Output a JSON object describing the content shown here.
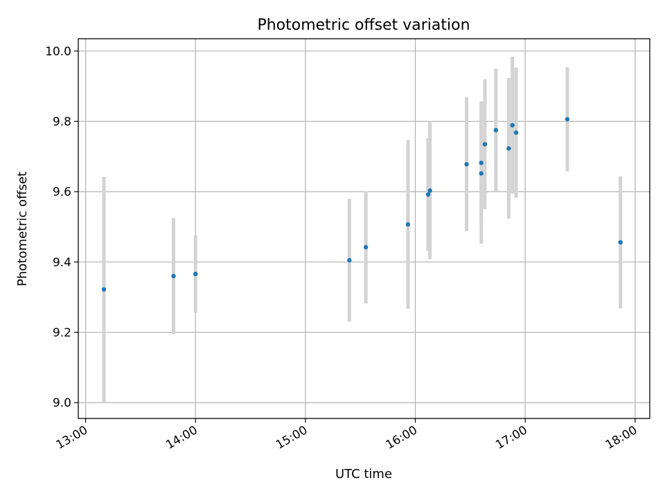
{
  "chart_data": {
    "type": "scatter",
    "title": "Photometric offset variation",
    "xlabel": "UTC time",
    "ylabel": "Photometric offset",
    "xlim": [
      "12:56",
      "18:08"
    ],
    "ylim": [
      8.955,
      10.035
    ],
    "x_ticks": [
      "13:00",
      "14:00",
      "15:00",
      "16:00",
      "17:00",
      "18:00"
    ],
    "y_ticks": [
      "9.0",
      "9.2",
      "9.4",
      "9.6",
      "9.8",
      "10.0"
    ],
    "grid": true,
    "x_tick_rotation": "diagonal",
    "colors": {
      "points": "#1f77b4",
      "errorbars": "#d3d3d3",
      "grid": "#b0b0b0"
    },
    "series": [
      {
        "x": [
          "13:10",
          "13:48",
          "14:00",
          "15:24",
          "15:33",
          "15:56",
          "16:07",
          "16:08",
          "16:28",
          "16:36",
          "16:36",
          "16:38",
          "16:44",
          "16:51",
          "16:53",
          "16:55",
          "17:23",
          "17:52"
        ],
        "y": [
          9.322,
          9.36,
          9.366,
          9.405,
          9.442,
          9.507,
          9.592,
          9.603,
          9.678,
          9.682,
          9.652,
          9.735,
          9.775,
          9.723,
          9.789,
          9.768,
          9.806,
          9.456
        ],
        "err": [
          0.32,
          0.165,
          0.11,
          0.175,
          0.16,
          0.24,
          0.16,
          0.195,
          0.19,
          0.175,
          0.2,
          0.185,
          0.175,
          0.2,
          0.195,
          0.185,
          0.148,
          0.188
        ]
      }
    ]
  }
}
